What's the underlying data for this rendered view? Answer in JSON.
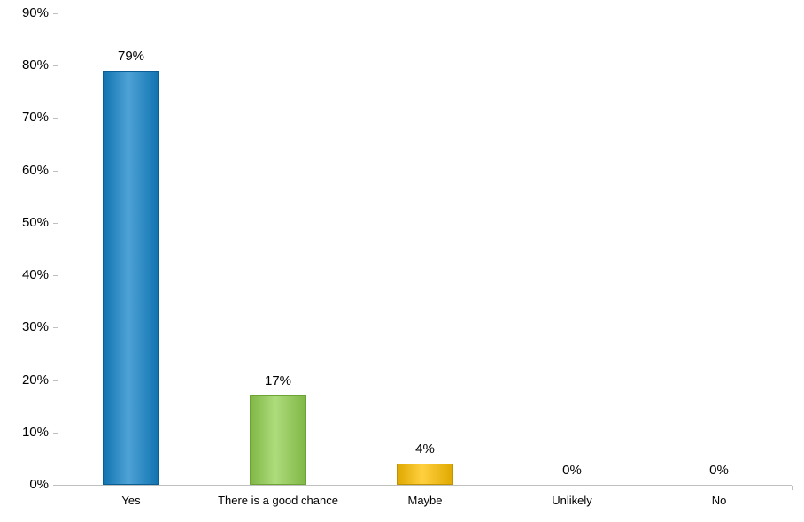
{
  "chart_data": {
    "type": "bar",
    "title": "",
    "xlabel": "",
    "ylabel": "",
    "categories": [
      "Yes",
      "There is a good chance",
      "Maybe",
      "Unlikely",
      "No"
    ],
    "values": [
      79,
      17,
      4,
      0,
      0
    ],
    "data_labels": [
      "79%",
      "17%",
      "4%",
      "0%",
      "0%"
    ],
    "bar_colors": [
      "#1383C8",
      "#92D050",
      "#FFC000",
      null,
      null
    ],
    "bar_border_colors": [
      "#0B5E94",
      "#6DA235",
      "#BF9000",
      null,
      null
    ],
    "ylim": [
      0,
      90
    ],
    "ytick_step": 10,
    "ytick_labels": [
      "0%",
      "10%",
      "20%",
      "30%",
      "40%",
      "50%",
      "60%",
      "70%",
      "80%",
      "90%"
    ],
    "grid": false,
    "legend": false,
    "axis_color": "#BFBFBF",
    "background_color": "#FFFFFF",
    "text_color": "#000000"
  }
}
